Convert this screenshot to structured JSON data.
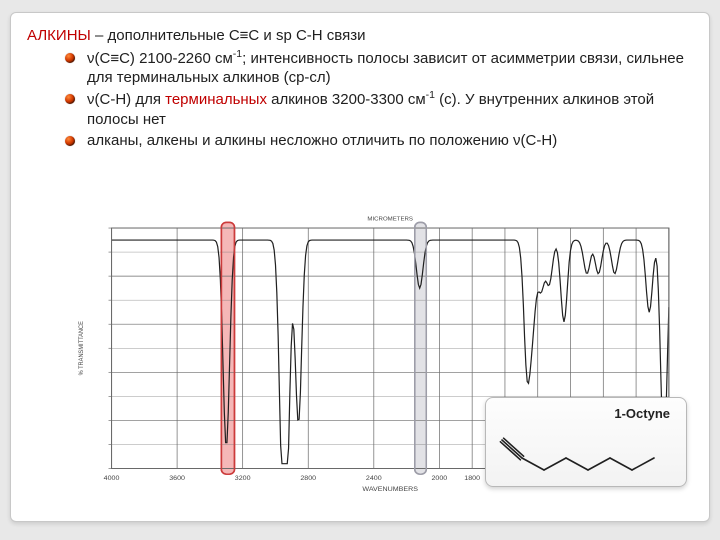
{
  "title": {
    "keyword": "АЛКИНЫ",
    "rest": " – дополнительные C≡C и sp C-H связи"
  },
  "bullets": [
    {
      "html": "ν(C≡C) 2100-2260 см<sup>-1</sup>; интенсивность полосы зависит от асимметрии связи, сильнее для терминальных алкинов (ср-сл)"
    },
    {
      "html": "ν(C-H) для <span class='red'>терминальных</span> алкинов 3200-3300 см<sup>-1</sup> (с). У внутренних алкинов этой полосы нет"
    },
    {
      "html": "алканы, алкены и алкины несложно отличить по положению ν(C-H)"
    }
  ],
  "chart": {
    "x_range": [
      4000,
      600
    ],
    "x_ticks": [
      4000,
      3600,
      3200,
      2800,
      2400,
      2000,
      1800,
      1600,
      1400,
      1200,
      1000,
      800,
      600
    ],
    "x_label": "WAVENUMBERS",
    "top_ticks_label": "MICROMETERS",
    "y_range": [
      0,
      100
    ],
    "y_label_left": "% TRANSMITTANCE",
    "highlight_red": {
      "x_from": 3330,
      "x_to": 3250,
      "fill": "#f5b7b7",
      "stroke": "#cc3b3b"
    },
    "highlight_gray": {
      "x_from": 2150,
      "x_to": 2080,
      "fill": "#e2e2e6",
      "stroke": "#9d9da8"
    },
    "baseline": 95,
    "peaks": [
      {
        "x": 3300,
        "depth": 86
      },
      {
        "x": 2960,
        "depth": 78
      },
      {
        "x": 2930,
        "depth": 86
      },
      {
        "x": 2860,
        "depth": 76
      },
      {
        "x": 2120,
        "depth": 20
      },
      {
        "x": 1465,
        "depth": 52
      },
      {
        "x": 1430,
        "depth": 30
      },
      {
        "x": 1380,
        "depth": 20
      },
      {
        "x": 1330,
        "depth": 18
      },
      {
        "x": 1240,
        "depth": 34
      },
      {
        "x": 1100,
        "depth": 14
      },
      {
        "x": 1030,
        "depth": 14
      },
      {
        "x": 930,
        "depth": 14
      },
      {
        "x": 720,
        "depth": 30
      },
      {
        "x": 630,
        "depth": 88
      }
    ],
    "line_color": "#202020",
    "grid_color": "#6a6a6a",
    "bg": "#ffffff"
  },
  "molecule": {
    "label": "1-Octyne",
    "line_color": "#202020"
  }
}
